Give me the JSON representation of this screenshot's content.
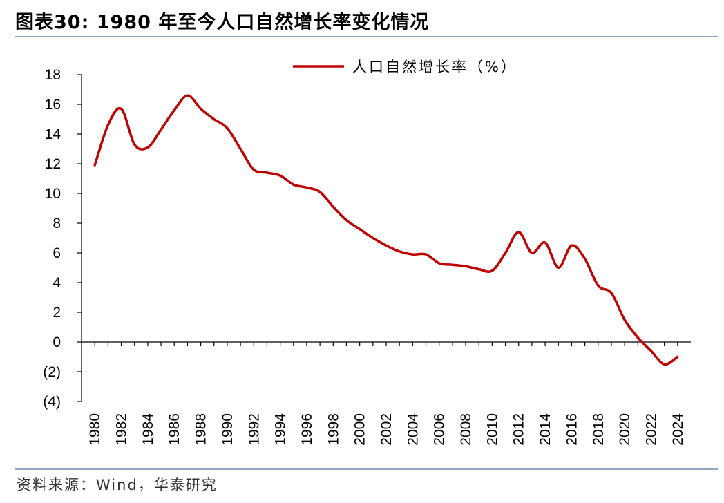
{
  "title": "图表30:  1980 年至今人口自然增长率变化情况",
  "source": "资料来源：Wind，华泰研究",
  "colors": {
    "line": "#c00000",
    "rule": "#8fa6bf",
    "axis": "#000000"
  },
  "chart_data": {
    "type": "line",
    "title": "",
    "xlabel": "",
    "ylabel": "",
    "ylim": [
      -4,
      18
    ],
    "yticks": [
      18,
      16,
      14,
      12,
      10,
      8,
      6,
      4,
      2,
      0,
      -2,
      -4
    ],
    "ytick_labels": [
      "18",
      "16",
      "14",
      "12",
      "10",
      "8",
      "6",
      "4",
      "2",
      "0",
      "(2)",
      "(4)"
    ],
    "xtick_labels": [
      "1980",
      "1982",
      "1984",
      "1986",
      "1988",
      "1990",
      "1992",
      "1994",
      "1996",
      "1998",
      "2000",
      "2002",
      "2004",
      "2006",
      "2008",
      "2010",
      "2012",
      "2014",
      "2016",
      "2018",
      "2020",
      "2022",
      "2024"
    ],
    "grid": false,
    "legend": "top-center",
    "series": [
      {
        "name": "人口自然增长率（%）",
        "x": [
          1980,
          1981,
          1982,
          1983,
          1984,
          1985,
          1986,
          1987,
          1988,
          1989,
          1990,
          1991,
          1992,
          1993,
          1994,
          1995,
          1996,
          1997,
          1998,
          1999,
          2000,
          2001,
          2002,
          2003,
          2004,
          2005,
          2006,
          2007,
          2008,
          2009,
          2010,
          2011,
          2012,
          2013,
          2014,
          2015,
          2016,
          2017,
          2018,
          2019,
          2020,
          2021,
          2022,
          2023,
          2024
        ],
        "values": [
          11.9,
          14.6,
          15.7,
          13.3,
          13.1,
          14.3,
          15.6,
          16.6,
          15.7,
          15.0,
          14.4,
          13.0,
          11.6,
          11.4,
          11.2,
          10.6,
          10.4,
          10.1,
          9.1,
          8.2,
          7.6,
          7.0,
          6.5,
          6.1,
          5.9,
          5.9,
          5.3,
          5.2,
          5.1,
          4.9,
          4.8,
          6.0,
          7.4,
          6.0,
          6.7,
          5.0,
          6.5,
          5.6,
          3.8,
          3.3,
          1.5,
          0.3,
          -0.6,
          -1.5,
          -1.0
        ]
      }
    ]
  }
}
